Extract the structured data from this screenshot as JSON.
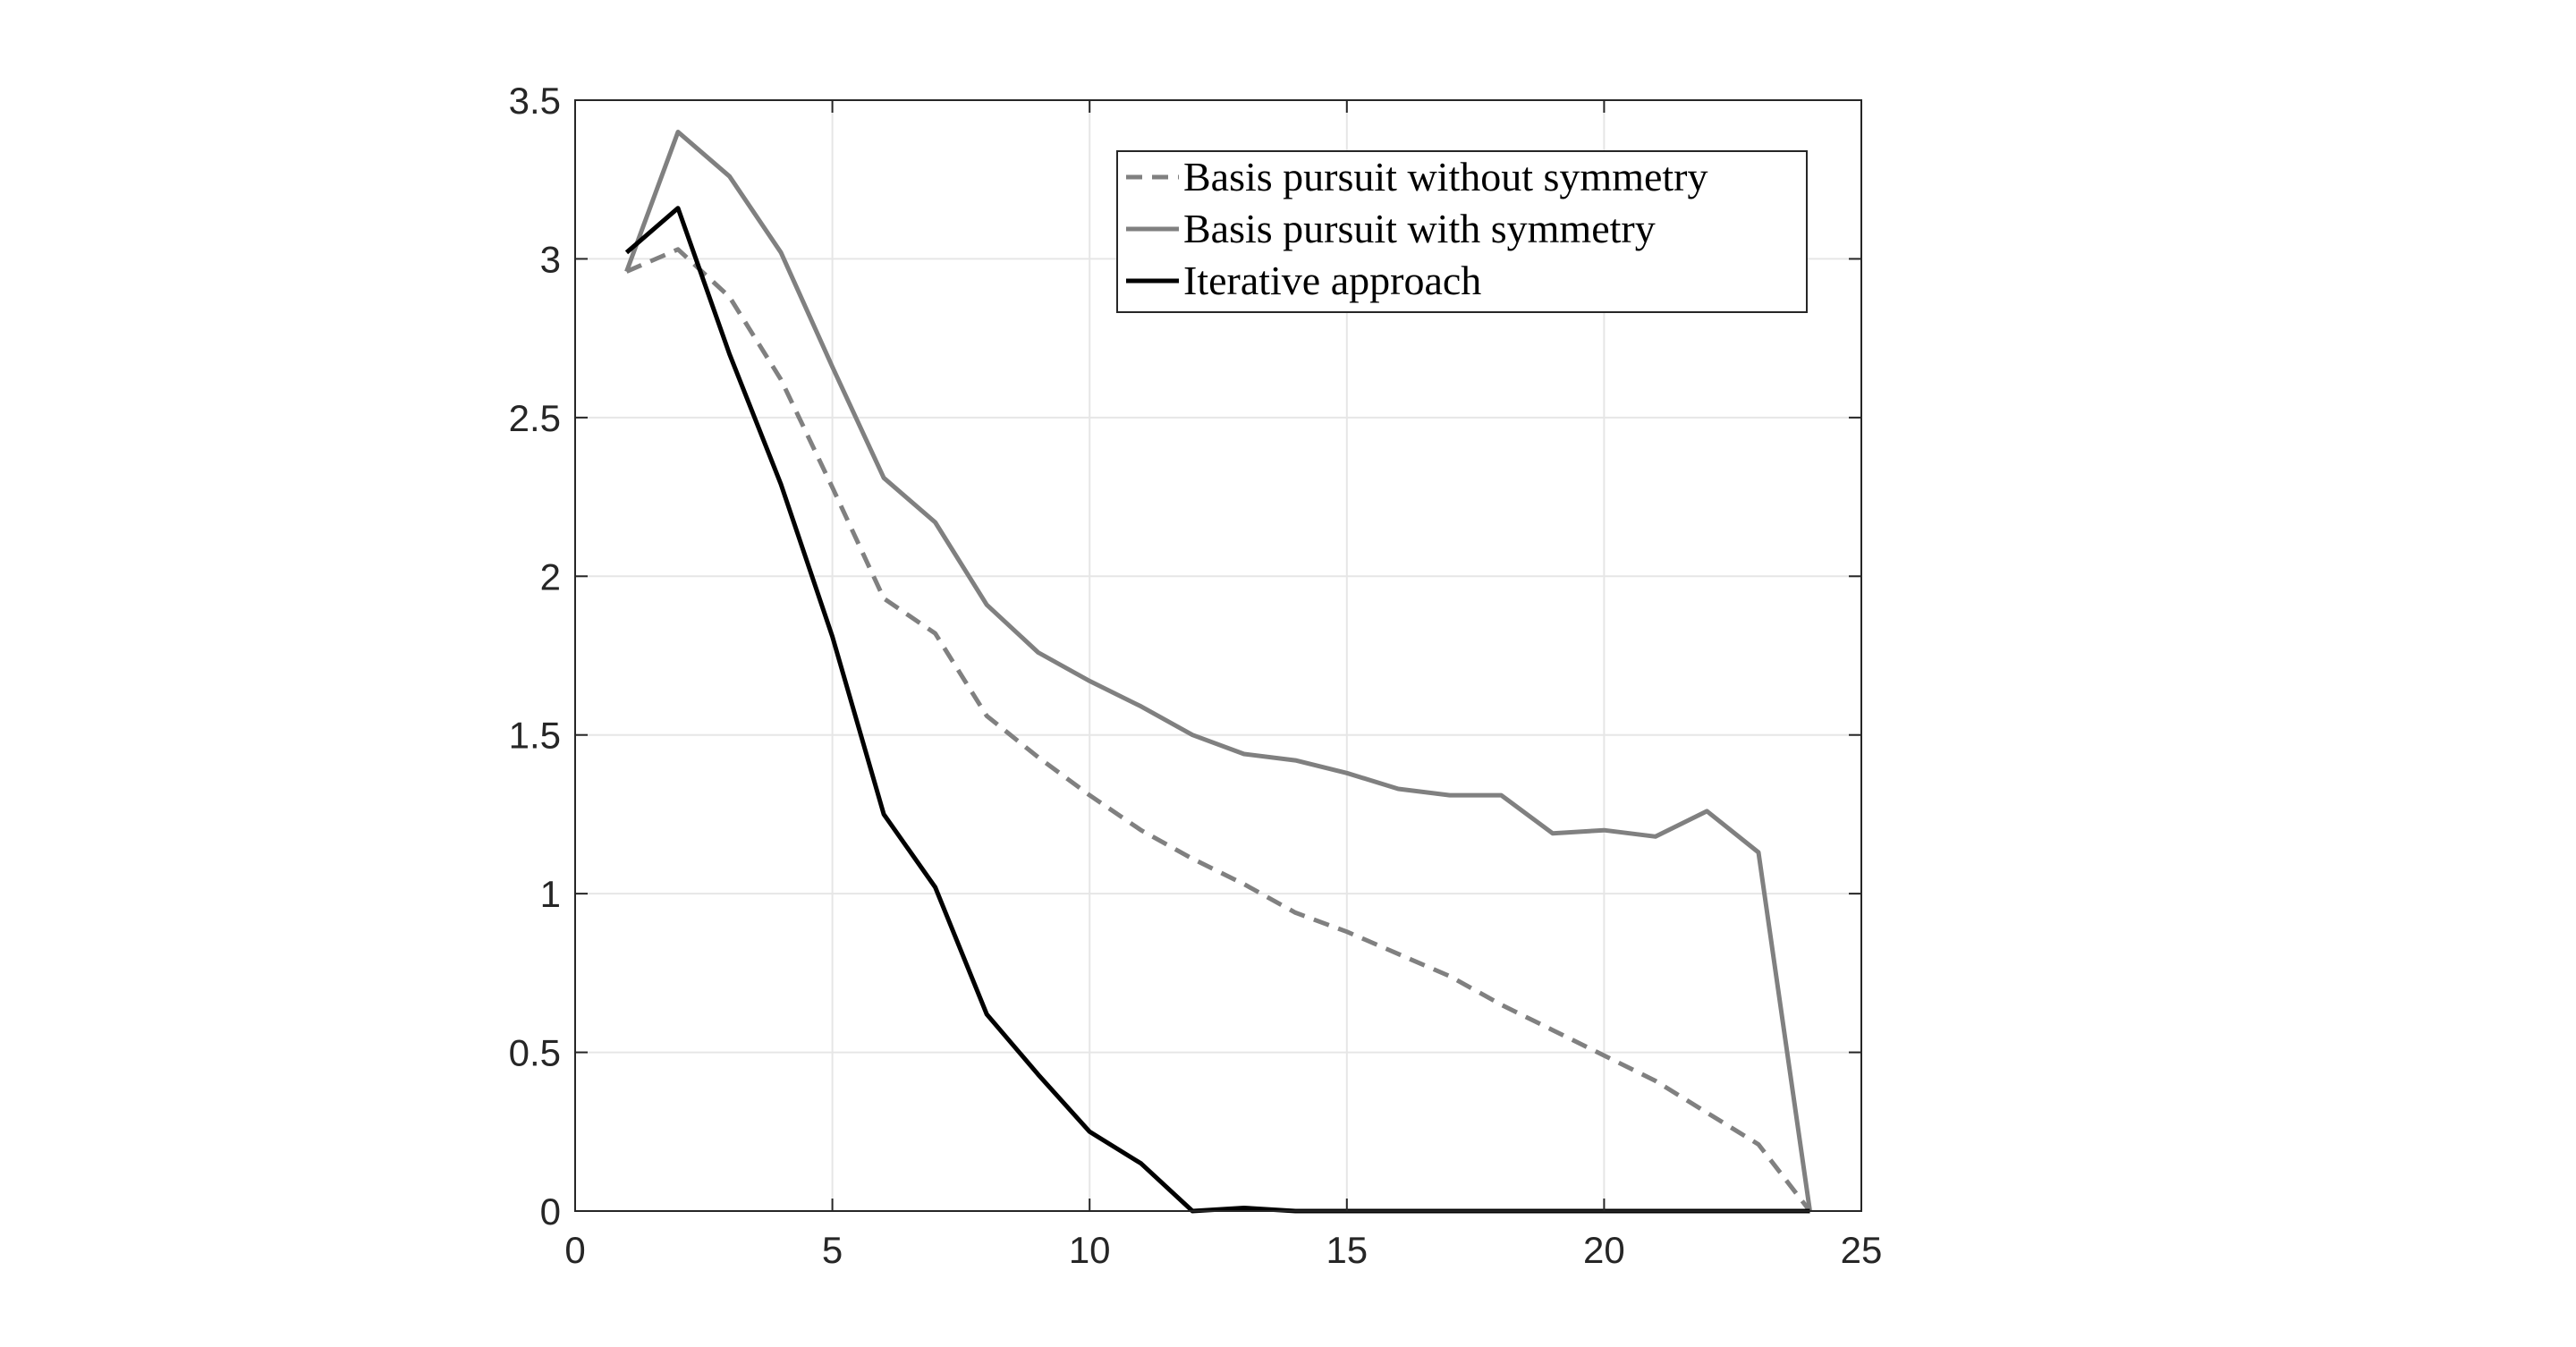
{
  "chart_data": {
    "type": "line",
    "title": "",
    "xlabel": "",
    "ylabel": "",
    "xlim": [
      0,
      25
    ],
    "ylim": [
      0,
      3.5
    ],
    "xticks": [
      0,
      5,
      10,
      15,
      20,
      25
    ],
    "yticks": [
      0,
      0.5,
      1,
      1.5,
      2,
      2.5,
      3,
      3.5
    ],
    "xtick_labels": [
      "0",
      "5",
      "10",
      "15",
      "20",
      "25"
    ],
    "ytick_labels": [
      "0",
      "0.5",
      "1",
      "1.5",
      "2",
      "2.5",
      "3",
      "3.5"
    ],
    "grid": true,
    "legend_position": "top-right",
    "x": [
      1,
      2,
      3,
      4,
      5,
      6,
      7,
      8,
      9,
      10,
      11,
      12,
      13,
      14,
      15,
      16,
      17,
      18,
      19,
      20,
      21,
      22,
      23,
      24
    ],
    "series": [
      {
        "name": "Basis pursuit without symmetry",
        "style": "dashed",
        "color": "#808080",
        "values": [
          2.96,
          3.03,
          2.88,
          2.62,
          2.28,
          1.93,
          1.82,
          1.56,
          1.43,
          1.31,
          1.2,
          1.11,
          1.03,
          0.94,
          0.88,
          0.81,
          0.74,
          0.65,
          0.57,
          0.49,
          0.41,
          0.31,
          0.21,
          0.0
        ]
      },
      {
        "name": "Basis pursuit with symmetry",
        "style": "solid",
        "color": "#808080",
        "values": [
          2.96,
          3.4,
          3.26,
          3.02,
          2.66,
          2.31,
          2.17,
          1.91,
          1.76,
          1.67,
          1.59,
          1.5,
          1.44,
          1.42,
          1.38,
          1.33,
          1.31,
          1.31,
          1.19,
          1.2,
          1.18,
          1.26,
          1.13,
          0.0
        ]
      },
      {
        "name": "Iterative approach",
        "style": "solid",
        "color": "#000000",
        "values": [
          3.02,
          3.16,
          2.7,
          2.29,
          1.81,
          1.25,
          1.02,
          0.62,
          0.43,
          0.25,
          0.15,
          0.0,
          0.01,
          0.0,
          0.0,
          0.0,
          0.0,
          0.0,
          0.0,
          0.0,
          0.0,
          0.0,
          0.0,
          0.0
        ]
      }
    ]
  }
}
